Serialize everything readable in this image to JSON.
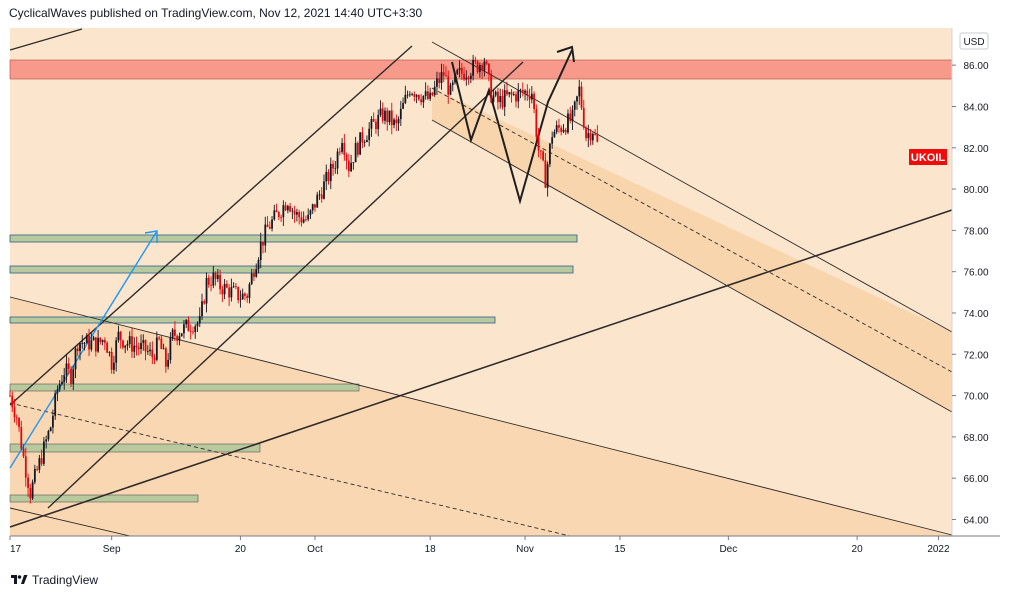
{
  "header": {
    "publisher": "CyclicalWaves",
    "text": "CyclicalWaves published on TradingView.com, Nov 12, 2021 14:40 UTC+3:30"
  },
  "footer": {
    "brand": "TradingView",
    "logo_icon": "tradingview-logo-icon"
  },
  "chart_data": {
    "type": "candlestick",
    "symbol": "UKOIL",
    "currency": "USD",
    "x_range": [
      "2021-08-17",
      "2022-01-03"
    ],
    "y_range": [
      63.2,
      87.8
    ],
    "x_ticks": [
      {
        "label": "17",
        "date": "2021-08-17"
      },
      {
        "label": "Sep",
        "date": "2021-09-01"
      },
      {
        "label": "20",
        "date": "2021-09-20"
      },
      {
        "label": "Oct",
        "date": "2021-10-01"
      },
      {
        "label": "18",
        "date": "2021-10-18"
      },
      {
        "label": "Nov",
        "date": "2021-11-01"
      },
      {
        "label": "15",
        "date": "2021-11-15"
      },
      {
        "label": "Dec",
        "date": "2021-12-01"
      },
      {
        "label": "20",
        "date": "2021-12-20"
      },
      {
        "label": "2022",
        "date": "2022-01-01"
      }
    ],
    "y_ticks": [
      "64.00",
      "66.00",
      "68.00",
      "70.00",
      "72.00",
      "74.00",
      "76.00",
      "78.00",
      "80.00",
      "82.00",
      "84.00",
      "86.00"
    ],
    "last_price_label": "UKOIL",
    "colors": {
      "background": "#fbe5cd",
      "channel_fill": "#f8d5ad",
      "resistance_zone": "#f79a8c",
      "support_zone": "#b7c99d",
      "line": "#2f2b28",
      "arrow_blue": "#2196f3",
      "candle": "#131722",
      "candle_down": "#e1060b",
      "label": "#f00c0c"
    },
    "price_path": [
      [
        "2021-08-17",
        70.0
      ],
      [
        "2021-08-18",
        69.0
      ],
      [
        "2021-08-19",
        67.0
      ],
      [
        "2021-08-20",
        65.3
      ],
      [
        "2021-08-23",
        68.5
      ],
      [
        "2021-08-24",
        70.3
      ],
      [
        "2021-08-25",
        71.2
      ],
      [
        "2021-08-26",
        71.0
      ],
      [
        "2021-08-27",
        72.6
      ],
      [
        "2021-08-30",
        72.5
      ],
      [
        "2021-08-31",
        72.8
      ],
      [
        "2021-09-01",
        71.6
      ],
      [
        "2021-09-02",
        72.9
      ],
      [
        "2021-09-03",
        72.6
      ],
      [
        "2021-09-06",
        72.2
      ],
      [
        "2021-09-07",
        71.9
      ],
      [
        "2021-09-08",
        72.6
      ],
      [
        "2021-09-09",
        71.5
      ],
      [
        "2021-09-10",
        72.9
      ],
      [
        "2021-09-13",
        73.5
      ],
      [
        "2021-09-14",
        73.5
      ],
      [
        "2021-09-15",
        75.5
      ],
      [
        "2021-09-16",
        75.7
      ],
      [
        "2021-09-17",
        75.3
      ],
      [
        "2021-09-20",
        74.8
      ],
      [
        "2021-09-21",
        74.9
      ],
      [
        "2021-09-22",
        76.2
      ],
      [
        "2021-09-23",
        77.3
      ],
      [
        "2021-09-24",
        78.1
      ],
      [
        "2021-09-27",
        79.5
      ],
      [
        "2021-09-28",
        78.8
      ],
      [
        "2021-09-29",
        78.6
      ],
      [
        "2021-09-30",
        78.5
      ],
      [
        "2021-10-01",
        79.3
      ],
      [
        "2021-10-04",
        81.3
      ],
      [
        "2021-10-05",
        82.6
      ],
      [
        "2021-10-06",
        81.1
      ],
      [
        "2021-10-07",
        81.9
      ],
      [
        "2021-10-08",
        82.5
      ],
      [
        "2021-10-11",
        83.6
      ],
      [
        "2021-10-12",
        83.4
      ],
      [
        "2021-10-13",
        83.0
      ],
      [
        "2021-10-14",
        84.0
      ],
      [
        "2021-10-15",
        84.9
      ],
      [
        "2021-10-18",
        84.3
      ],
      [
        "2021-10-19",
        85.1
      ],
      [
        "2021-10-20",
        85.6
      ],
      [
        "2021-10-21",
        84.6
      ],
      [
        "2021-10-22",
        85.5
      ],
      [
        "2021-10-25",
        86.0
      ],
      [
        "2021-10-26",
        86.3
      ],
      [
        "2021-10-27",
        84.6
      ],
      [
        "2021-10-28",
        84.2
      ],
      [
        "2021-10-29",
        84.4
      ],
      [
        "2021-11-01",
        84.7
      ],
      [
        "2021-11-02",
        84.7
      ],
      [
        "2021-11-03",
        81.9
      ],
      [
        "2021-11-04",
        80.5
      ],
      [
        "2021-11-05",
        82.7
      ],
      [
        "2021-11-08",
        83.4
      ],
      [
        "2021-11-09",
        84.8
      ],
      [
        "2021-11-10",
        82.6
      ],
      [
        "2021-11-11",
        82.9
      ],
      [
        "2021-11-12",
        81.8
      ]
    ]
  }
}
